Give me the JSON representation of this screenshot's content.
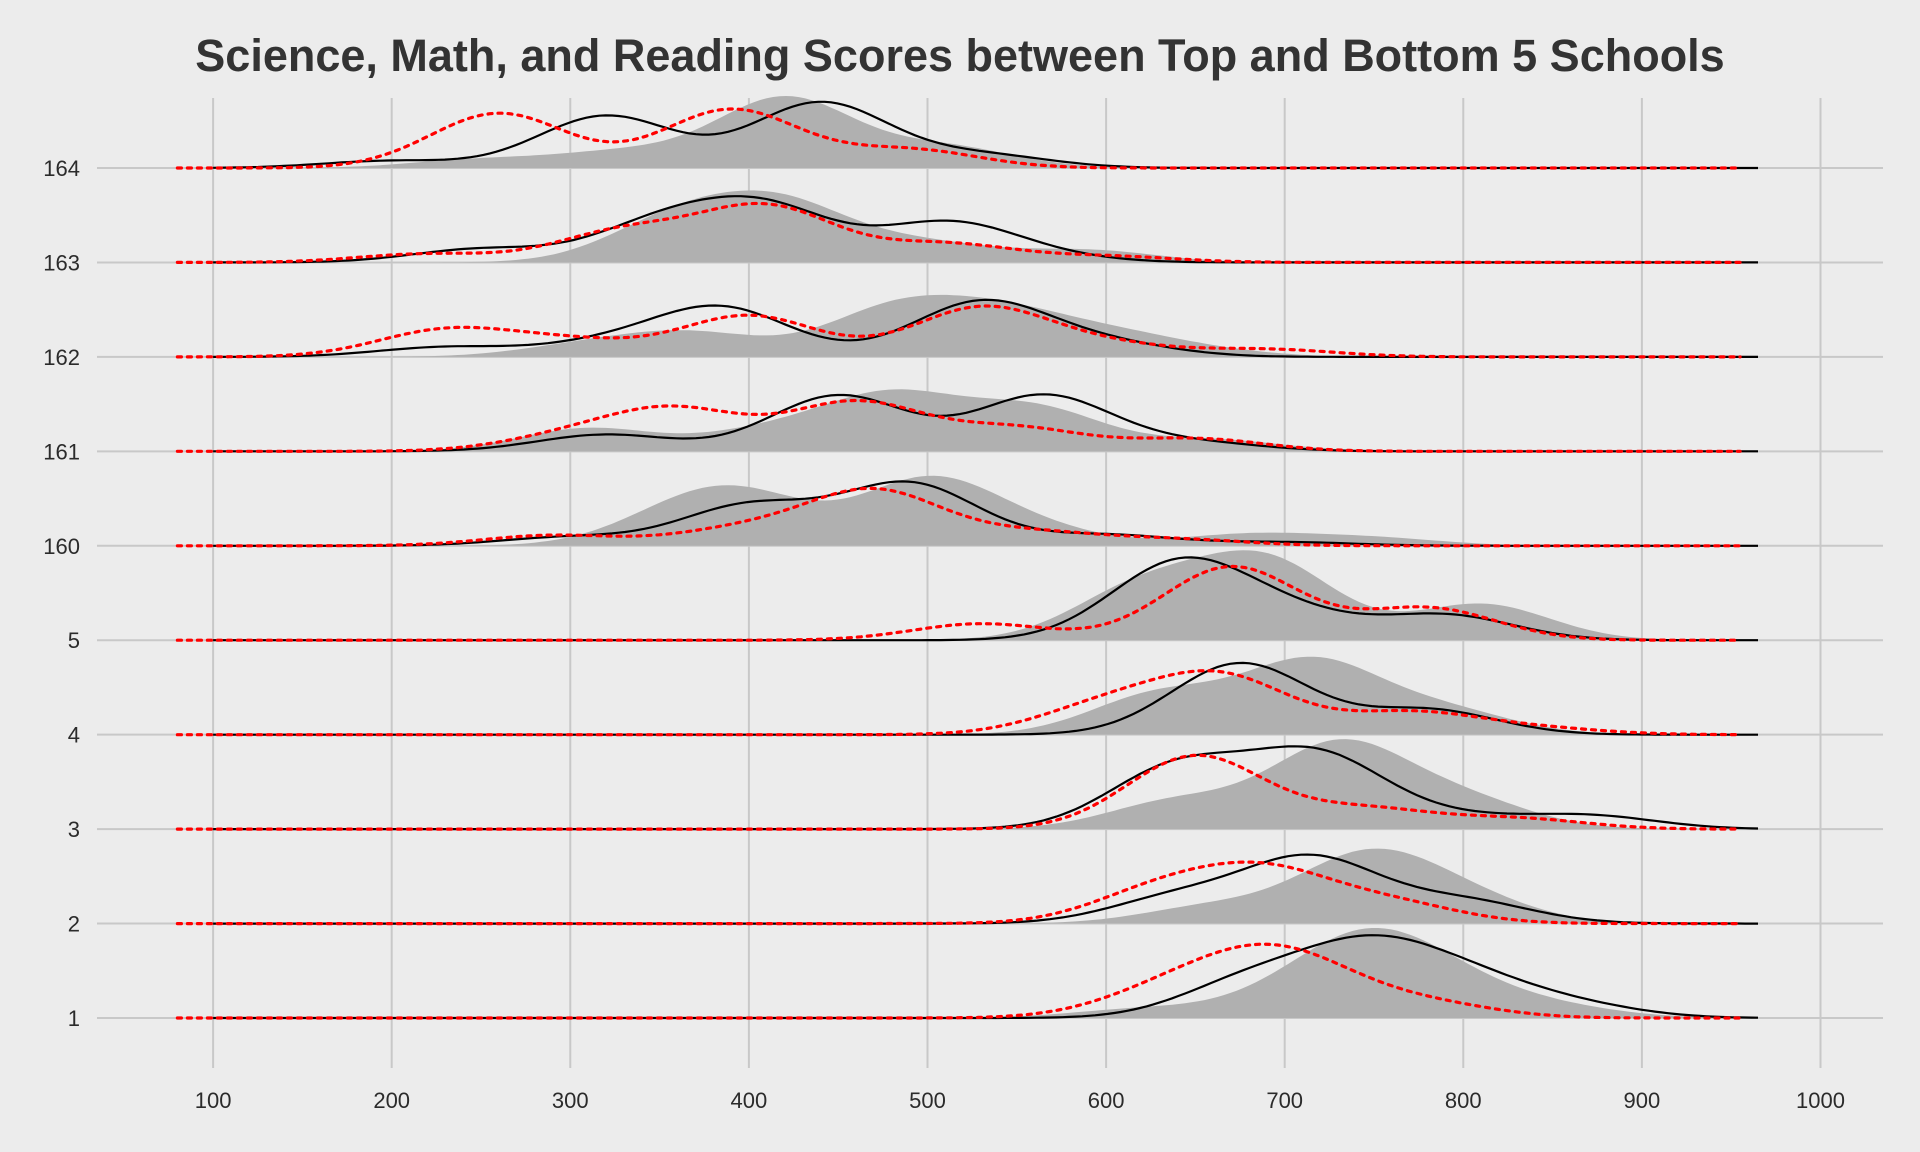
{
  "chart_data": {
    "type": "ridgeline-density",
    "title": "Science, Math, and Reading Scores between Top and Bottom 5 Schools",
    "xlabel": "",
    "ylabel": "",
    "xlim": [
      35,
      1035
    ],
    "x_ticks": [
      100,
      200,
      300,
      400,
      500,
      600,
      700,
      800,
      900,
      1000
    ],
    "grid": true,
    "legend": "none",
    "colors": {
      "background": "#ececec",
      "grid": "#c8c8c8",
      "fill": "#b0b0b0",
      "black_line": "#000000",
      "red_line": "#ff0000",
      "title": "#333333"
    },
    "ridges": [
      {
        "label": "1",
        "peak": 90,
        "fill_range": [
          100,
          965
        ],
        "black_range": [
          100,
          965
        ],
        "red_range": [
          80,
          955
        ],
        "fill": [
          [
            620,
            0.12
          ],
          [
            700,
            0.22
          ],
          [
            745,
            0.9
          ],
          [
            790,
            0.4
          ],
          [
            850,
            0.14
          ]
        ],
        "black": [
          [
            680,
            0.34
          ],
          [
            745,
            0.6
          ],
          [
            800,
            0.33
          ],
          [
            860,
            0.12
          ]
        ],
        "red": [
          [
            628,
            0.18
          ],
          [
            672,
            0.33
          ],
          [
            710,
            0.4
          ],
          [
            780,
            0.13
          ]
        ]
      },
      {
        "label": "2",
        "peak": 75,
        "fill_range": [
          100,
          965
        ],
        "black_range": [
          100,
          965
        ],
        "red_range": [
          80,
          955
        ],
        "fill": [
          [
            660,
            0.25
          ],
          [
            745,
            0.95
          ],
          [
            800,
            0.35
          ]
        ],
        "black": [
          [
            640,
            0.4
          ],
          [
            715,
            1.0
          ],
          [
            800,
            0.35
          ]
        ],
        "red": [
          [
            630,
            0.5
          ],
          [
            690,
            0.75
          ],
          [
            760,
            0.3
          ]
        ]
      },
      {
        "label": "3",
        "peak": 90,
        "fill_range": [
          100,
          965
        ],
        "black_range": [
          100,
          965
        ],
        "red_range": [
          80,
          955
        ],
        "fill": [
          [
            640,
            0.32
          ],
          [
            730,
            0.95
          ],
          [
            800,
            0.32
          ]
        ],
        "black": [
          [
            640,
            0.7
          ],
          [
            718,
            0.82
          ],
          [
            795,
            0.12
          ],
          [
            870,
            0.15
          ]
        ],
        "red": [
          [
            650,
            0.85
          ],
          [
            745,
            0.23
          ],
          [
            830,
            0.12
          ]
        ]
      },
      {
        "label": "4",
        "peak": 78,
        "fill_range": [
          100,
          965
        ],
        "black_range": [
          100,
          965
        ],
        "red_range": [
          80,
          955
        ],
        "fill": [
          [
            630,
            0.55
          ],
          [
            715,
            0.98
          ],
          [
            790,
            0.32
          ]
        ],
        "black": [
          [
            675,
            1.0
          ],
          [
            780,
            0.35
          ]
        ],
        "red": [
          [
            600,
            0.45
          ],
          [
            665,
            0.9
          ],
          [
            770,
            0.35
          ],
          [
            840,
            0.1
          ]
        ]
      },
      {
        "label": "5",
        "peak": 90,
        "fill_range": [
          100,
          965
        ],
        "black_range": [
          100,
          965
        ],
        "red_range": [
          80,
          955
        ],
        "fill": [
          [
            620,
            0.6
          ],
          [
            690,
            0.9
          ],
          [
            810,
            0.42
          ]
        ],
        "black": [
          [
            640,
            1.05
          ],
          [
            700,
            0.35
          ],
          [
            790,
            0.35
          ]
        ],
        "red": [
          [
            530,
            0.18
          ],
          [
            670,
            0.8
          ],
          [
            780,
            0.35
          ]
        ]
      },
      {
        "label": "160",
        "peak": 70,
        "fill_range": [
          100,
          965
        ],
        "black_range": [
          100,
          965
        ],
        "red_range": [
          80,
          955
        ],
        "fill": [
          [
            360,
            0.35
          ],
          [
            400,
            0.55
          ],
          [
            500,
            0.85
          ],
          [
            560,
            0.2
          ],
          [
            680,
            0.15
          ],
          [
            750,
            0.1
          ]
        ],
        "black": [
          [
            300,
            0.12
          ],
          [
            400,
            0.55
          ],
          [
            490,
            0.85
          ],
          [
            600,
            0.15
          ],
          [
            700,
            0.05
          ]
        ],
        "red": [
          [
            290,
            0.2
          ],
          [
            395,
            0.3
          ],
          [
            470,
            1.05
          ],
          [
            560,
            0.25
          ],
          [
            640,
            0.12
          ]
        ]
      },
      {
        "label": "161",
        "peak": 62,
        "fill_range": [
          100,
          965
        ],
        "black_range": [
          100,
          965
        ],
        "red_range": [
          80,
          955
        ],
        "fill": [
          [
            310,
            0.3
          ],
          [
            410,
            0.25
          ],
          [
            480,
            0.7
          ],
          [
            560,
            0.55
          ],
          [
            660,
            0.15
          ]
        ],
        "black": [
          [
            320,
            0.3
          ],
          [
            450,
            1.0
          ],
          [
            565,
            1.0
          ],
          [
            650,
            0.15
          ]
        ],
        "red": [
          [
            300,
            0.25
          ],
          [
            360,
            0.7
          ],
          [
            460,
            0.85
          ],
          [
            550,
            0.4
          ],
          [
            650,
            0.22
          ]
        ]
      },
      {
        "label": "162",
        "peak": 62,
        "fill_range": [
          100,
          965
        ],
        "black_range": [
          100,
          965
        ],
        "red_range": [
          80,
          955
        ],
        "fill": [
          [
            310,
            0.18
          ],
          [
            370,
            0.35
          ],
          [
            480,
            0.7
          ],
          [
            540,
            0.6
          ],
          [
            600,
            0.3
          ],
          [
            650,
            0.1
          ]
        ],
        "black": [
          [
            230,
            0.15
          ],
          [
            320,
            0.2
          ],
          [
            385,
            0.75
          ],
          [
            530,
            0.85
          ],
          [
            600,
            0.2
          ]
        ],
        "red": [
          [
            230,
            0.35
          ],
          [
            300,
            0.2
          ],
          [
            400,
            0.55
          ],
          [
            530,
            0.65
          ],
          [
            600,
            0.15
          ],
          [
            690,
            0.1
          ]
        ]
      },
      {
        "label": "163",
        "peak": 72,
        "fill_range": [
          100,
          965
        ],
        "black_range": [
          100,
          965
        ],
        "red_range": [
          80,
          955
        ],
        "fill": [
          [
            360,
            0.7
          ],
          [
            420,
            0.9
          ],
          [
            500,
            0.3
          ],
          [
            590,
            0.2
          ]
        ],
        "black": [
          [
            250,
            0.22
          ],
          [
            350,
            0.6
          ],
          [
            410,
            0.85
          ],
          [
            510,
            0.62
          ],
          [
            560,
            0.1
          ]
        ],
        "red": [
          [
            220,
            0.14
          ],
          [
            330,
            0.5
          ],
          [
            410,
            0.9
          ],
          [
            510,
            0.3
          ],
          [
            600,
            0.1
          ]
        ]
      },
      {
        "label": "164",
        "peak": 72,
        "fill_range": [
          100,
          965
        ],
        "black_range": [
          100,
          965
        ],
        "red_range": [
          80,
          955
        ],
        "fill": [
          [
            250,
            0.12
          ],
          [
            330,
            0.22
          ],
          [
            420,
            1.0
          ],
          [
            510,
            0.3
          ]
        ],
        "black": [
          [
            200,
            0.1
          ],
          [
            320,
            0.72
          ],
          [
            440,
            0.9
          ],
          [
            530,
            0.18
          ]
        ],
        "red": [
          [
            260,
            0.75
          ],
          [
            390,
            0.8
          ],
          [
            490,
            0.25
          ]
        ]
      }
    ]
  }
}
